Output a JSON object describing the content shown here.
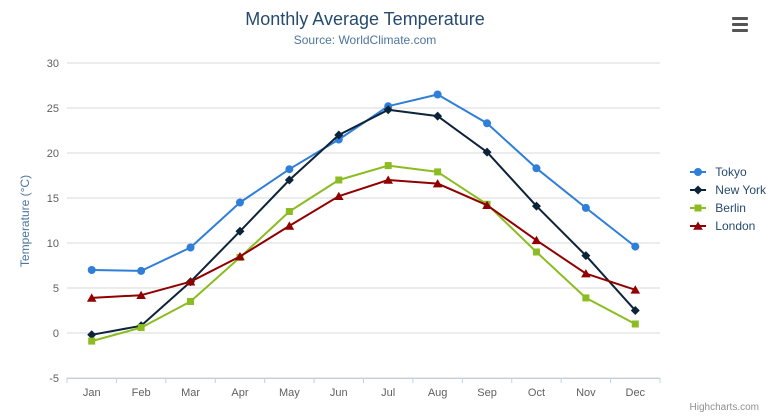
{
  "chart_data": {
    "type": "line",
    "title": "Monthly Average Temperature",
    "subtitle": "Source: WorldClimate.com",
    "xlabel": "",
    "ylabel": "Temperature (°C)",
    "ylim": [
      -5,
      30
    ],
    "yticks": [
      -5,
      0,
      5,
      10,
      15,
      20,
      25,
      30
    ],
    "grid": true,
    "legend_position": "right",
    "categories": [
      "Jan",
      "Feb",
      "Mar",
      "Apr",
      "May",
      "Jun",
      "Jul",
      "Aug",
      "Sep",
      "Oct",
      "Nov",
      "Dec"
    ],
    "series": [
      {
        "name": "Tokyo",
        "color": "#2f7ed8",
        "marker": "circle",
        "values": [
          7.0,
          6.9,
          9.5,
          14.5,
          18.2,
          21.5,
          25.2,
          26.5,
          23.3,
          18.3,
          13.9,
          9.6
        ]
      },
      {
        "name": "New York",
        "color": "#0d233a",
        "marker": "diamond",
        "values": [
          -0.2,
          0.8,
          5.7,
          11.3,
          17.0,
          22.0,
          24.8,
          24.1,
          20.1,
          14.1,
          8.6,
          2.5
        ]
      },
      {
        "name": "Berlin",
        "color": "#8bbc21",
        "marker": "square",
        "values": [
          -0.9,
          0.6,
          3.5,
          8.4,
          13.5,
          17.0,
          18.6,
          17.9,
          14.3,
          9.0,
          3.9,
          1.0
        ]
      },
      {
        "name": "London",
        "color": "#910000",
        "marker": "triangle",
        "values": [
          3.9,
          4.2,
          5.7,
          8.5,
          11.9,
          15.2,
          17.0,
          16.6,
          14.2,
          10.3,
          6.6,
          4.8
        ]
      }
    ],
    "credit": "Highcharts.com"
  },
  "colors": {
    "title_text": "#274b6d",
    "subtitle_text": "#4d759e",
    "axis_tick_text": "#606060",
    "gridline": "#d8d8d8",
    "axis_line": "#c0d0e0"
  },
  "icons": {
    "context_menu": "hamburger-icon"
  }
}
